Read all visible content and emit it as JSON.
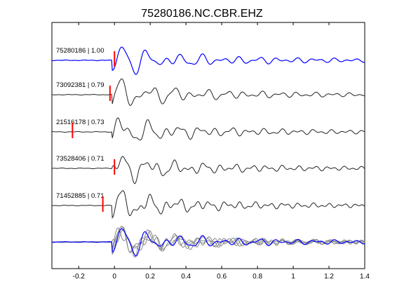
{
  "figure": {
    "title": "75280186.NC.CBR.EHZ"
  },
  "chart_data": {
    "type": "line",
    "title": "75280186.NC.CBR.EHZ",
    "xlabel": "",
    "ylabel": "",
    "xlim": [
      -0.35,
      1.4
    ],
    "xticks": [
      -0.2,
      0,
      0.2,
      0.4,
      0.6,
      0.8,
      1,
      1.2,
      1.4
    ],
    "xtick_labels": [
      "-0.2",
      "0",
      "0.2",
      "0.4",
      "0.6",
      "0.8",
      "1",
      "1.2",
      "1.4"
    ],
    "yticks_shown": false,
    "grid": false,
    "colors": {
      "reference_trace": "#0000ff",
      "trace": "#222222",
      "overlay_trace": "#888888",
      "pick_marker": "#ff0000"
    },
    "traces": [
      {
        "label": "75280186 | 1.00",
        "pick_time": 0.0,
        "color": "#0000ff",
        "is_reference": true
      },
      {
        "label": "73092381 | 0.79",
        "pick_time": -0.025,
        "color": "#222222",
        "is_reference": false
      },
      {
        "label": "21516178 | 0.73",
        "pick_time": -0.235,
        "color": "#222222",
        "is_reference": false
      },
      {
        "label": "73528406 | 0.71",
        "pick_time": 0.0,
        "color": "#222222",
        "is_reference": false
      },
      {
        "label": "71452885 | 0.71",
        "pick_time": -0.065,
        "color": "#222222",
        "is_reference": false
      }
    ],
    "stack": {
      "description_visible": false,
      "color": "#0000ff"
    }
  }
}
